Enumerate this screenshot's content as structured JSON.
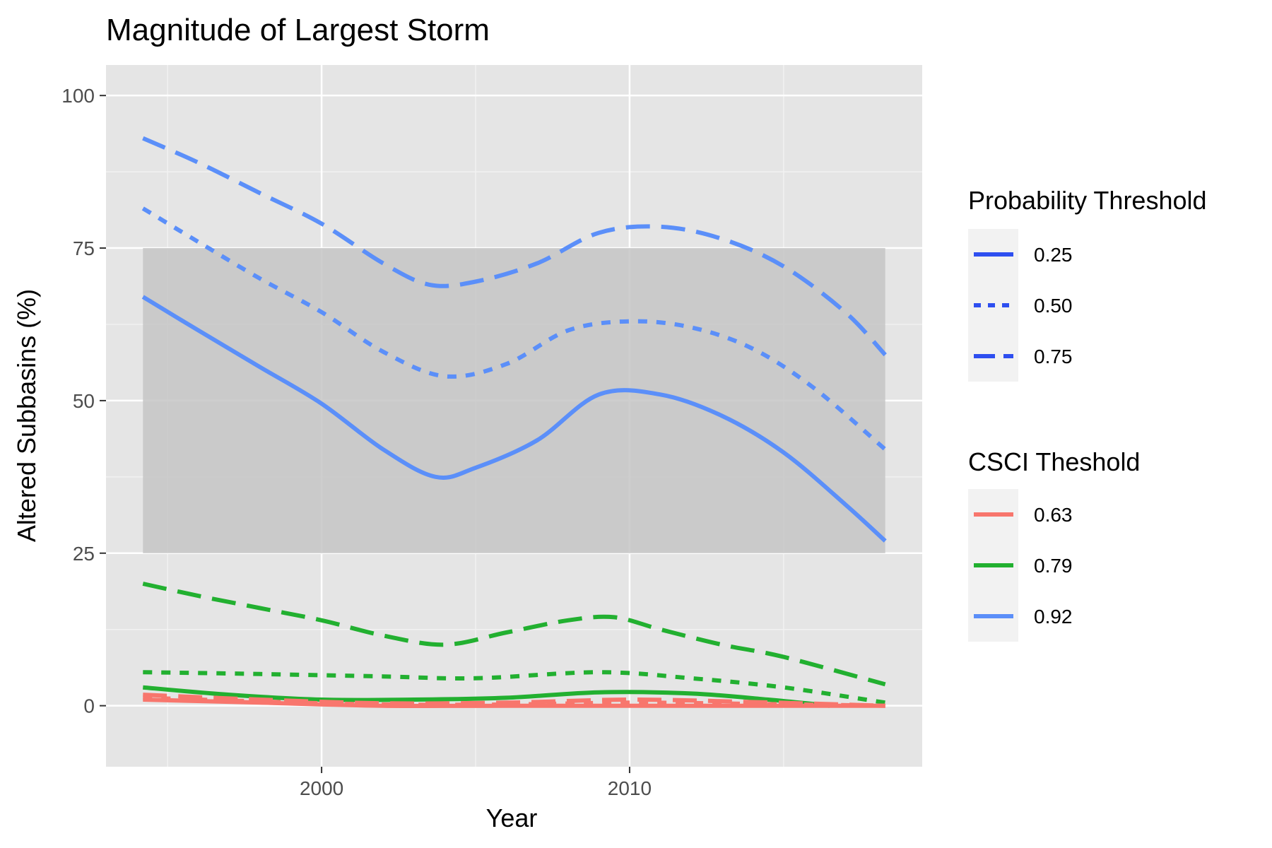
{
  "chart_data": {
    "type": "line",
    "title": "Magnitude of Largest Storm",
    "xlabel": "Year",
    "ylabel": "Altered Subbasins (%)",
    "xlim": [
      1993,
      2019.5
    ],
    "ylim": [
      -10,
      105
    ],
    "x_ticks": [
      2000,
      2010
    ],
    "x_tick_labels": [
      "2000",
      "2010"
    ],
    "y_ticks": [
      0,
      25,
      50,
      75,
      100
    ],
    "y_tick_labels": [
      "0",
      "25",
      "50",
      "75",
      "100"
    ],
    "grid": true,
    "background": "#e5e5e5",
    "shaded_band": {
      "ymin": 25,
      "ymax": 75,
      "xmin": 1994.2,
      "xmax": 2018.3,
      "color": "#c6c6c6"
    },
    "legends": {
      "position": "right",
      "probability": {
        "title": "Probability Threshold",
        "items": [
          {
            "label": "0.25",
            "dash": "solid"
          },
          {
            "label": "0.50",
            "dash": "dotted"
          },
          {
            "label": "0.75",
            "dash": "dashed"
          }
        ],
        "color": "#2e4ff0"
      },
      "csci": {
        "title": "CSCI Theshold",
        "items": [
          {
            "label": "0.63",
            "color": "#f8766d"
          },
          {
            "label": "0.79",
            "color": "#22b030"
          },
          {
            "label": "0.92",
            "color": "#5b8ff9"
          }
        ]
      }
    },
    "series": [
      {
        "csci": "0.92",
        "prob": "0.75",
        "color": "#5b8ff9",
        "dash": "dashed",
        "x": [
          1994.2,
          1996,
          1998,
          2000,
          2002,
          2003.5,
          2005,
          2007,
          2009,
          2011,
          2013,
          2015,
          2017,
          2018.3
        ],
        "y": [
          93,
          89,
          84,
          79,
          72.5,
          69,
          69.5,
          72.5,
          77.5,
          78.5,
          76.5,
          72,
          64.5,
          57.5
        ]
      },
      {
        "csci": "0.92",
        "prob": "0.50",
        "color": "#5b8ff9",
        "dash": "dotted",
        "x": [
          1994.2,
          1996,
          1998,
          2000,
          2002,
          2004,
          2006,
          2008,
          2010,
          2012,
          2014,
          2016,
          2018.3
        ],
        "y": [
          81.5,
          76,
          70,
          64.5,
          58,
          54,
          56,
          61.5,
          63,
          62,
          58.5,
          52,
          42
        ]
      },
      {
        "csci": "0.92",
        "prob": "0.25",
        "color": "#5b8ff9",
        "dash": "solid",
        "x": [
          1994.2,
          1996,
          1998,
          2000,
          2002,
          2003.7,
          2005,
          2007,
          2009,
          2011,
          2013,
          2015,
          2017,
          2018.3
        ],
        "y": [
          67,
          61.5,
          55.5,
          49.5,
          42,
          37.5,
          39,
          43.5,
          51,
          51,
          47.5,
          41.5,
          33,
          27
        ]
      },
      {
        "csci": "0.79",
        "prob": "0.75",
        "color": "#22b030",
        "dash": "dashed",
        "x": [
          1994.2,
          1996,
          1998,
          2000,
          2002,
          2004,
          2006,
          2008,
          2009.5,
          2011,
          2013,
          2015,
          2018.3
        ],
        "y": [
          20,
          18,
          16,
          14,
          11.5,
          10,
          12,
          14,
          14.5,
          12.5,
          10,
          8,
          3.5
        ]
      },
      {
        "csci": "0.79",
        "prob": "0.50",
        "color": "#22b030",
        "dash": "dotted",
        "x": [
          1994.2,
          1998,
          2002,
          2005,
          2009,
          2012,
          2015,
          2018.3
        ],
        "y": [
          5.5,
          5.2,
          4.8,
          4.5,
          5.5,
          4.5,
          3,
          0.5
        ]
      },
      {
        "csci": "0.79",
        "prob": "0.25",
        "color": "#22b030",
        "dash": "solid",
        "x": [
          1994.2,
          1997,
          2000,
          2003,
          2006,
          2009,
          2012,
          2014.5,
          2016.5
        ],
        "y": [
          3,
          1.8,
          1,
          1,
          1.3,
          2.2,
          2,
          1,
          0
        ]
      },
      {
        "csci": "0.63",
        "prob": "0.75",
        "color": "#f8766d",
        "dash": "dashed",
        "x": [
          1994.2,
          1998,
          2002,
          2006,
          2010,
          2014,
          2018.3
        ],
        "y": [
          1.8,
          1,
          0.4,
          0.5,
          1,
          0.6,
          0
        ]
      },
      {
        "csci": "0.63",
        "prob": "0.50",
        "color": "#f8766d",
        "dash": "dotted",
        "x": [
          1994.2,
          1998,
          2002,
          2006,
          2010,
          2014,
          2018.3
        ],
        "y": [
          1.3,
          0.7,
          0.2,
          0.2,
          0.5,
          0.3,
          0
        ]
      },
      {
        "csci": "0.63",
        "prob": "0.25",
        "color": "#f8766d",
        "dash": "solid",
        "x": [
          1994.2,
          1998,
          2002,
          2006,
          2010,
          2014,
          2018.3
        ],
        "y": [
          1,
          0.5,
          0,
          0,
          0,
          0,
          0
        ]
      }
    ]
  }
}
